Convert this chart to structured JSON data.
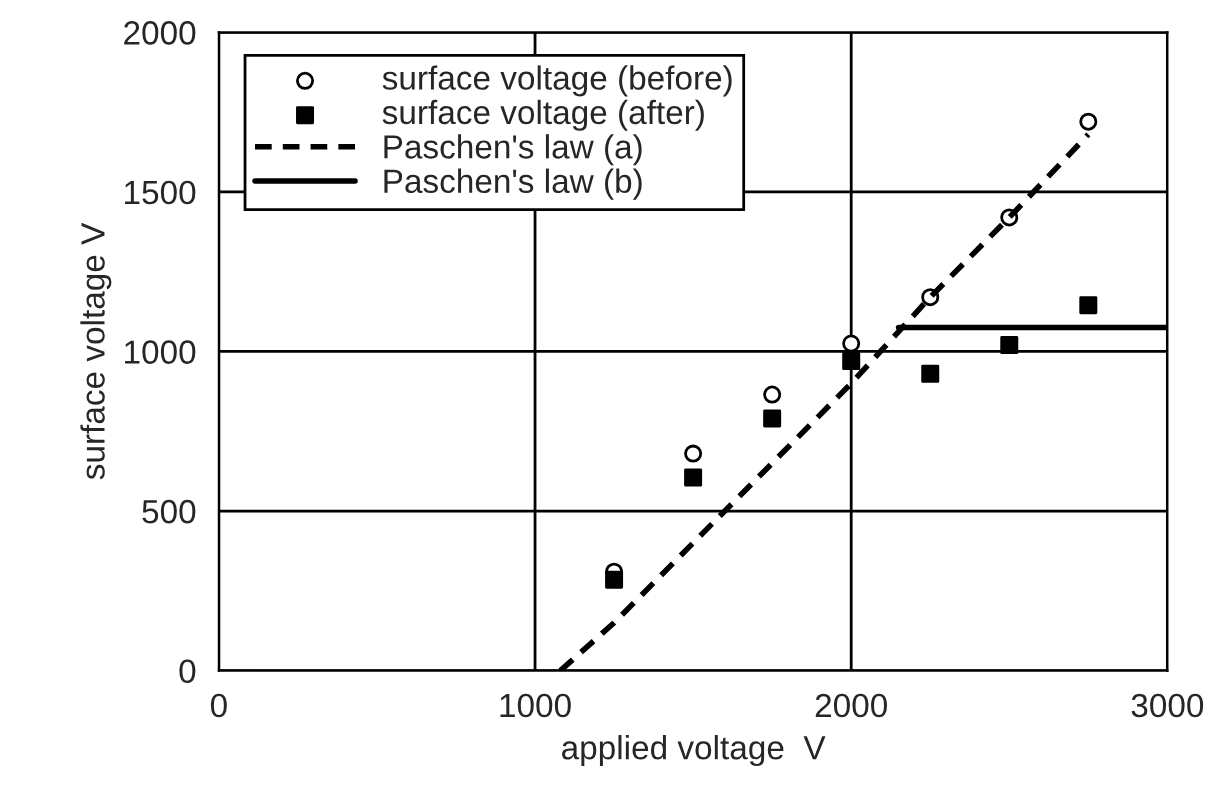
{
  "chart_data": {
    "type": "scatter",
    "xlabel": "applied voltage  V",
    "ylabel": "surface voltage V",
    "xlim": [
      0,
      3000
    ],
    "ylim": [
      0,
      2000
    ],
    "xticks": [
      0,
      1000,
      2000,
      3000
    ],
    "yticks": [
      0,
      500,
      1000,
      1500,
      2000
    ],
    "grid": true,
    "legend": "top left",
    "series": [
      {
        "name": "surface voltage (before)",
        "marker": "circle",
        "color": "#000000",
        "x": [
          1250,
          1500,
          1750,
          2000,
          2250,
          2500,
          2750
        ],
        "values": [
          310,
          680,
          865,
          1025,
          1170,
          1420,
          1720
        ]
      },
      {
        "name": "surface voltage (after)",
        "marker": "square",
        "color": "#000000",
        "x": [
          1250,
          1500,
          1750,
          2000,
          2250,
          2500,
          2750
        ],
        "values": [
          285,
          605,
          790,
          970,
          930,
          1020,
          1145
        ]
      },
      {
        "name": "Paschen's law (a)",
        "type": "line",
        "line_style": "dashed",
        "color": "#000000",
        "x": [
          1080,
          1250,
          1500,
          1750,
          2000,
          2250,
          2500,
          2750
        ],
        "values": [
          0,
          150,
          400,
          650,
          900,
          1170,
          1420,
          1680
        ]
      },
      {
        "name": "Paschen's law (b)",
        "type": "line",
        "line_style": "solid",
        "color": "#000000",
        "x": [
          2150,
          3000
        ],
        "values": [
          1075,
          1075
        ]
      }
    ]
  }
}
